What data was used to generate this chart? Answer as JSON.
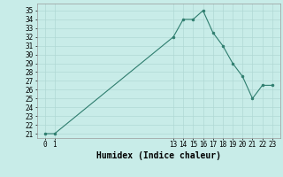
{
  "x": [
    0,
    1,
    13,
    14,
    15,
    16,
    17,
    18,
    19,
    20,
    21,
    22,
    23
  ],
  "y": [
    21,
    21,
    32,
    34,
    34,
    35,
    32.5,
    31,
    29,
    27.5,
    25,
    26.5,
    26.5
  ],
  "line_color": "#2e7d6e",
  "marker": "o",
  "marker_size": 2,
  "bg_color": "#c8ece8",
  "grid_color": "#b0d8d4",
  "xlabel": "Humidex (Indice chaleur)",
  "xlabel_fontsize": 7,
  "ylim": [
    20.5,
    35.8
  ],
  "xlim": [
    -0.8,
    23.8
  ],
  "yticks": [
    21,
    22,
    23,
    24,
    25,
    26,
    27,
    28,
    29,
    30,
    31,
    32,
    33,
    34,
    35
  ],
  "xticks": [
    0,
    1,
    13,
    14,
    15,
    16,
    17,
    18,
    19,
    20,
    21,
    22,
    23
  ],
  "tick_fontsize": 5.5
}
